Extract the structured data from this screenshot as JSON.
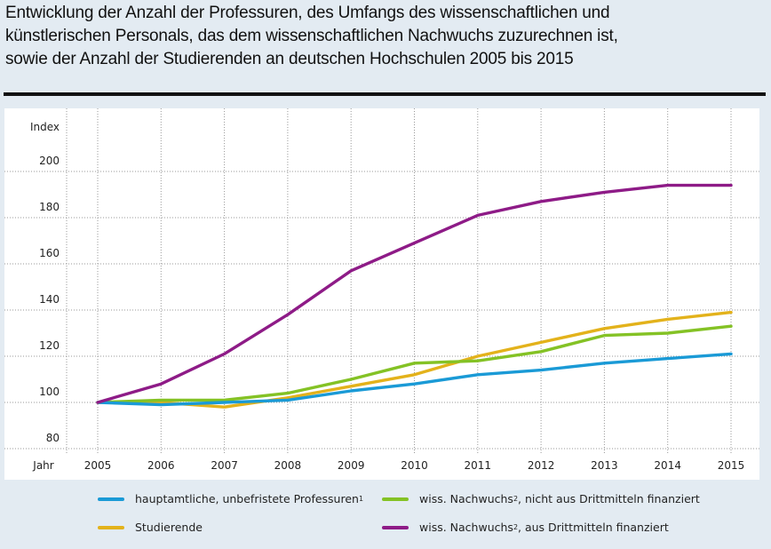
{
  "title": {
    "lines": [
      "Entwicklung der Anzahl der Professuren, des Umfangs des wissenschaftlichen und",
      "künstlerischen Personals, das dem wissenschaftlichen Nachwuchs zuzurechnen ist,",
      "sowie der Anzahl der Studierenden an deutschen Hochschulen 2005 bis 2015"
    ]
  },
  "chart_data": {
    "type": "line",
    "title": "Entwicklung der Anzahl der Professuren, des Umfangs des wissenschaftlichen und künstlerischen Personals, das dem wissenschaftlichen Nachwuchs zuzurechnen ist, sowie der Anzahl der Studierenden an deutschen Hochschulen 2005 bis 2015",
    "xlabel": "Jahr",
    "ylabel": "Index",
    "x": [
      2005,
      2006,
      2007,
      2008,
      2009,
      2010,
      2011,
      2012,
      2013,
      2014,
      2015
    ],
    "x_tick_labels": [
      "2005",
      "2006",
      "2007",
      "2008",
      "2009",
      "2010",
      "2011",
      "2012",
      "2013",
      "2014",
      "2015"
    ],
    "y_ticks": [
      80,
      100,
      120,
      140,
      160,
      180,
      200
    ],
    "y_tick_labels": [
      "80",
      "100",
      "120",
      "140",
      "160",
      "180",
      "200"
    ],
    "ylim": [
      75,
      215
    ],
    "grid": true,
    "legend_position": "bottom",
    "series": [
      {
        "name": "hauptamtliche, unbefristete Professuren",
        "footnote": "1",
        "color": "#1a9ad6",
        "values": [
          100,
          99,
          100,
          101,
          105,
          108,
          112,
          114,
          117,
          119,
          121
        ]
      },
      {
        "name": "Studierende",
        "footnote": "",
        "color": "#e3b21b",
        "values": [
          100,
          100,
          98,
          102,
          107,
          112,
          120,
          126,
          132,
          136,
          139
        ]
      },
      {
        "name": "wiss. Nachwuchs, nicht aus Drittmitteln finanziert",
        "footnote": "2",
        "color": "#84c225",
        "values": [
          100,
          101,
          101,
          104,
          110,
          117,
          118,
          122,
          129,
          130,
          133
        ]
      },
      {
        "name": "wiss. Nachwuchs, aus Drittmitteln finanziert",
        "footnote": "2",
        "color": "#8e1b87",
        "values": [
          100,
          108,
          121,
          138,
          157,
          169,
          181,
          187,
          191,
          194,
          194
        ]
      }
    ]
  },
  "legend": {
    "items": [
      {
        "label": "hauptamtliche, unbefristete Professuren",
        "sup": "1",
        "color": "#1a9ad6"
      },
      {
        "label": "Studierende",
        "sup": "",
        "color": "#e3b21b"
      },
      {
        "label_pre": "wiss. Nachwuchs",
        "sup": "2",
        "label_post": ", nicht aus Drittmitteln finanziert",
        "color": "#84c225"
      },
      {
        "label_pre": "wiss. Nachwuchs",
        "sup": "2",
        "label_post": ", aus Drittmitteln finanziert",
        "color": "#8e1b87"
      }
    ]
  }
}
